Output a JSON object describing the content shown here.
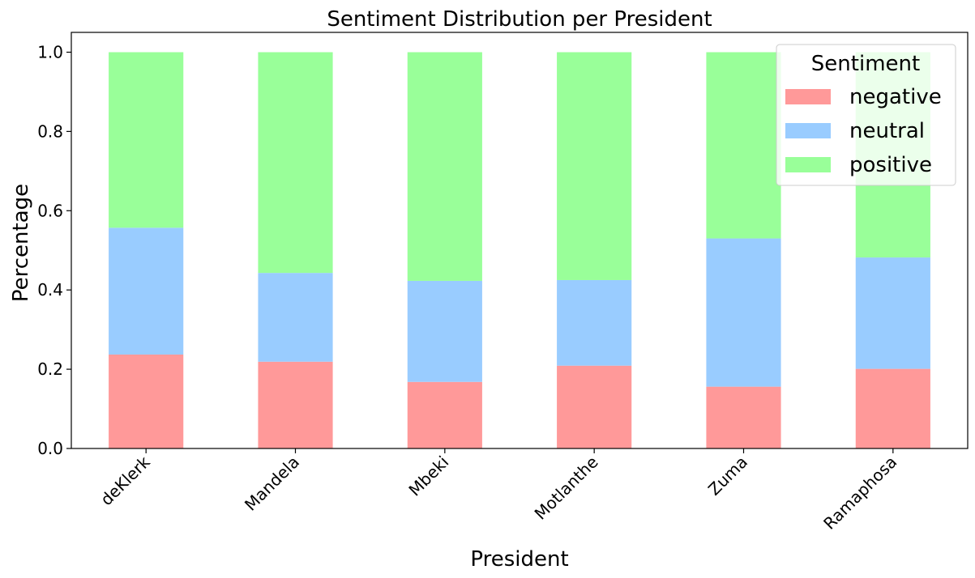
{
  "chart_data": {
    "type": "bar",
    "stacked": true,
    "title": "Sentiment Distribution per President",
    "xlabel": "President",
    "ylabel": "Percentage",
    "categories": [
      "deKlerk",
      "Mandela",
      "Mbeki",
      "Motlanthe",
      "Zuma",
      "Ramaphosa"
    ],
    "series": [
      {
        "name": "negative",
        "color": "#ff9999",
        "values": [
          0.237,
          0.219,
          0.168,
          0.209,
          0.156,
          0.201
        ]
      },
      {
        "name": "neutral",
        "color": "#99ccff",
        "values": [
          0.32,
          0.224,
          0.255,
          0.216,
          0.374,
          0.281
        ]
      },
      {
        "name": "positive",
        "color": "#99ff99",
        "values": [
          0.443,
          0.557,
          0.577,
          0.575,
          0.47,
          0.518
        ]
      }
    ],
    "ylim": [
      0,
      1.05
    ],
    "yticks": [
      "0.0",
      "0.2",
      "0.4",
      "0.6",
      "0.8",
      "1.0"
    ],
    "xtick_rotation": 45,
    "legend": {
      "title": "Sentiment",
      "position": "top-right"
    },
    "grid": false
  }
}
